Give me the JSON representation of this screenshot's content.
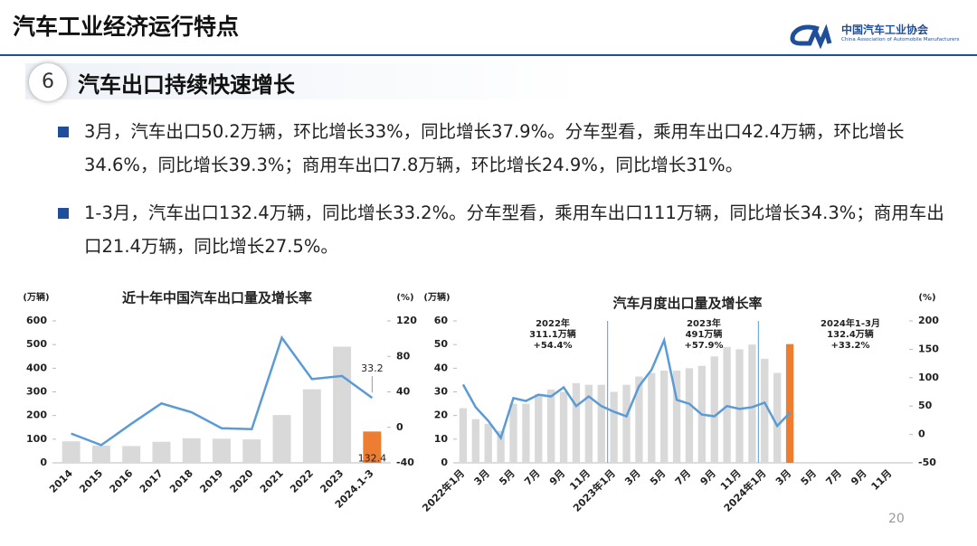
{
  "header": {
    "title": "汽车工业经济运行特点",
    "org_name": "中国汽车工业协会",
    "org_name_en": "China Association of Automobile Manufacturers"
  },
  "section": {
    "number": "6",
    "title": "汽车出口持续快速增长"
  },
  "bullets": [
    "3月，汽车出口50.2万辆，环比增长33%，同比增长37.9%。分车型看，乘用车出口42.4万辆，环比增长34.6%，同比增长39.3%；商用车出口7.8万辆，环比增长24.9%，同比增长31%。",
    "1-3月，汽车出口132.4万辆，同比增长33.2%。分车型看，乘用车出口111万辆，同比增长34.3%；商用车出口21.4万辆，同比增长27.5%。"
  ],
  "page_number": "20",
  "chart_data": [
    {
      "type": "combo",
      "title": "近十年中国汽车出口量及增长率",
      "y_label": "(万辆)",
      "y2_label": "(%)",
      "categories": [
        "2014",
        "2015",
        "2016",
        "2017",
        "2018",
        "2019",
        "2020",
        "2021",
        "2022",
        "2023",
        "2024.1-3"
      ],
      "series": [
        {
          "type": "bar",
          "color": "#d9d9d9",
          "colors": [
            "#d9d9d9",
            "#d9d9d9",
            "#d9d9d9",
            "#d9d9d9",
            "#d9d9d9",
            "#d9d9d9",
            "#d9d9d9",
            "#d9d9d9",
            "#d9d9d9",
            "#d9d9d9",
            "#ed7d31"
          ],
          "values": [
            91,
            73,
            71,
            89,
            104,
            102,
            99,
            202,
            311.1,
            491,
            132.4
          ],
          "value_labels": [
            null,
            null,
            null,
            null,
            null,
            null,
            null,
            null,
            null,
            null,
            "132.4"
          ]
        },
        {
          "type": "line",
          "axis": "y2",
          "color": "#5b9bd5",
          "values": [
            -7,
            -20,
            4,
            27,
            17,
            -1,
            -2,
            101,
            54.4,
            57.9,
            33.2
          ],
          "value_labels": [
            null,
            null,
            null,
            null,
            null,
            null,
            null,
            null,
            null,
            null,
            "33.2"
          ]
        }
      ],
      "ylim": [
        0,
        600
      ],
      "yticks": [
        0,
        100,
        200,
        300,
        400,
        500,
        600
      ],
      "y2lim": [
        -40,
        120
      ],
      "y2ticks": [
        -40,
        0,
        40,
        80,
        120
      ]
    },
    {
      "type": "combo",
      "title": "汽车月度出口量及增长率",
      "y_label": "(万辆)",
      "y2_label": "(%)",
      "categories": [
        "2022年1月",
        null,
        "3月",
        null,
        "5月",
        null,
        "7月",
        null,
        "9月",
        null,
        "11月",
        null,
        "2023年1月",
        null,
        "3月",
        null,
        "5月",
        null,
        "7月",
        null,
        "9月",
        null,
        "11月",
        null,
        "2024年1月",
        null,
        "3月",
        null,
        "5月",
        null,
        "7月",
        null,
        "9月",
        null,
        "11月",
        null
      ],
      "series": [
        {
          "type": "bar",
          "color": "#d9d9d9",
          "colors": [
            "#d9d9d9",
            "#d9d9d9",
            "#d9d9d9",
            "#d9d9d9",
            "#d9d9d9",
            "#d9d9d9",
            "#d9d9d9",
            "#d9d9d9",
            "#d9d9d9",
            "#d9d9d9",
            "#d9d9d9",
            "#d9d9d9",
            "#d9d9d9",
            "#d9d9d9",
            "#d9d9d9",
            "#d9d9d9",
            "#d9d9d9",
            "#d9d9d9",
            "#d9d9d9",
            "#d9d9d9",
            "#d9d9d9",
            "#d9d9d9",
            "#d9d9d9",
            "#d9d9d9",
            "#d9d9d9",
            "#d9d9d9",
            "#ed7d31",
            null,
            null,
            null,
            null,
            null,
            null,
            null,
            null,
            null
          ],
          "values": [
            23.1,
            18.5,
            16.5,
            13.5,
            25,
            25,
            29,
            31,
            30,
            33.7,
            33,
            33,
            30,
            33,
            36.5,
            38,
            39,
            39,
            40,
            41,
            45,
            49,
            48,
            50,
            44,
            38,
            50.2,
            null,
            null,
            null,
            null,
            null,
            null,
            null,
            null,
            null
          ]
        },
        {
          "type": "line",
          "axis": "y2",
          "color": "#5b9bd5",
          "values": [
            88,
            48,
            24,
            -6,
            64,
            59,
            70,
            67,
            83,
            50,
            67,
            50,
            40,
            32,
            85,
            114,
            166,
            61,
            54,
            35,
            32,
            50,
            45,
            48,
            56,
            15,
            37.9,
            null,
            null,
            null,
            null,
            null,
            null,
            null,
            null,
            null
          ]
        }
      ],
      "annotations": [
        {
          "lines": [
            "2022年",
            "311.1万辆",
            "+54.4%"
          ]
        },
        {
          "lines": [
            "2023年",
            "491万辆",
            "+57.9%"
          ]
        },
        {
          "lines": [
            "2024年1-3月",
            "132.4万辆",
            "+33.2%"
          ]
        }
      ],
      "ylim": [
        0,
        60
      ],
      "yticks": [
        0,
        10,
        20,
        30,
        40,
        50,
        60
      ],
      "y2lim": [
        -50,
        200
      ],
      "y2ticks": [
        -50,
        0,
        50,
        100,
        150,
        200
      ]
    }
  ]
}
